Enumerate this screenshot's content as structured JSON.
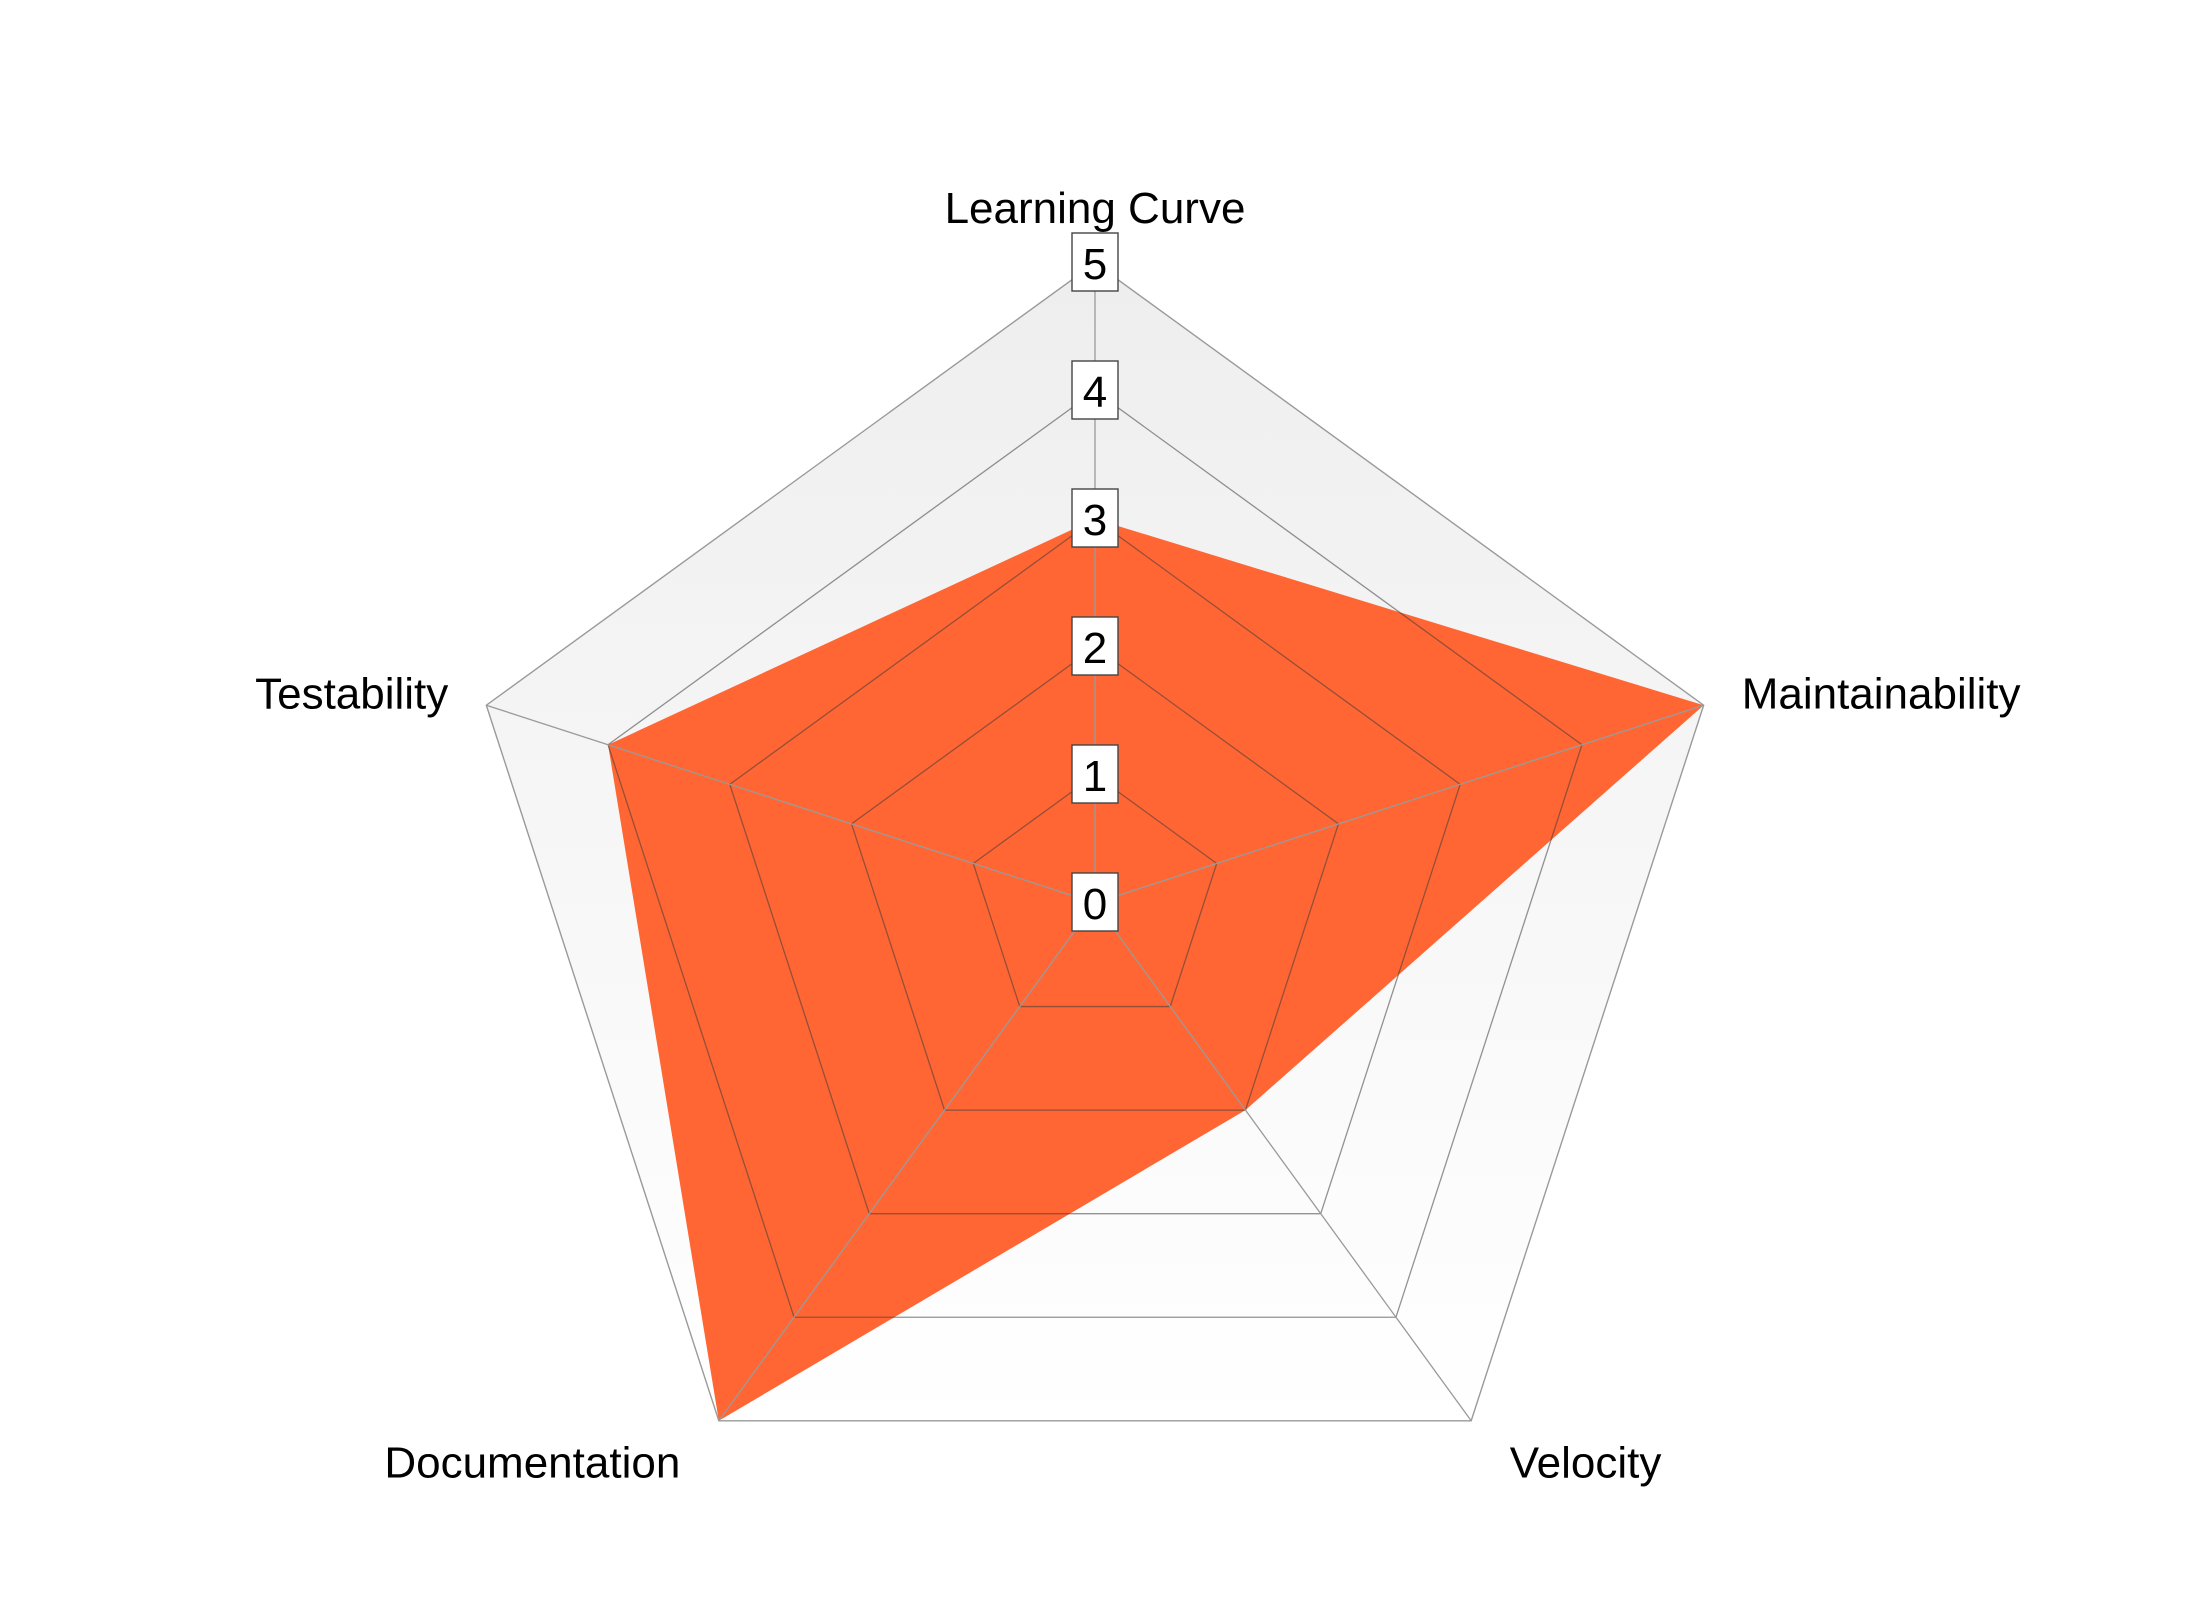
{
  "chart_data": {
    "type": "radar",
    "axes": [
      "Learning Curve",
      "Maintainability",
      "Velocity",
      "Documentation",
      "Testability"
    ],
    "series": [
      {
        "values": [
          3,
          5,
          2,
          5,
          4
        ]
      }
    ],
    "range": [
      0,
      5
    ],
    "ticks": [
      0,
      1,
      2,
      3,
      4,
      5
    ],
    "grid": true,
    "legend": "none",
    "fill_color": "#FF6633",
    "background_gradient": [
      "#EEEEEE",
      "#FFFFFF"
    ],
    "grid_color": "#999999"
  }
}
